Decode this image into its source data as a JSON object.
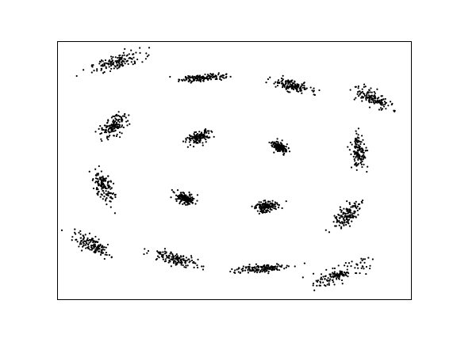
{
  "chart_data": {
    "type": "scatter",
    "title": "",
    "xlabel": "",
    "ylabel": "",
    "xlim": [
      0,
      1
    ],
    "ylim": [
      0,
      1
    ],
    "grid": false,
    "axes_ticks": false,
    "marker_color": "#000000",
    "series": [
      {
        "clusters": [
          {
            "cx": 0.17,
            "cy": 0.92,
            "spread": 0.013,
            "dir_deg": 24,
            "length": 0.14
          },
          {
            "cx": 0.41,
            "cy": 0.86,
            "spread": 0.007,
            "dir_deg": 5,
            "length": 0.12
          },
          {
            "cx": 0.66,
            "cy": 0.83,
            "spread": 0.01,
            "dir_deg": -20,
            "length": 0.1
          },
          {
            "cx": 0.89,
            "cy": 0.78,
            "spread": 0.012,
            "dir_deg": -40,
            "length": 0.11
          },
          {
            "cx": 0.16,
            "cy": 0.67,
            "spread": 0.013,
            "dir_deg": 62,
            "length": 0.1
          },
          {
            "cx": 0.4,
            "cy": 0.63,
            "spread": 0.01,
            "dir_deg": 30,
            "length": 0.07
          },
          {
            "cx": 0.63,
            "cy": 0.59,
            "spread": 0.008,
            "dir_deg": -45,
            "length": 0.05
          },
          {
            "cx": 0.85,
            "cy": 0.57,
            "spread": 0.01,
            "dir_deg": -85,
            "length": 0.11
          },
          {
            "cx": 0.13,
            "cy": 0.44,
            "spread": 0.012,
            "dir_deg": -75,
            "length": 0.11
          },
          {
            "cx": 0.36,
            "cy": 0.39,
            "spread": 0.01,
            "dir_deg": -35,
            "length": 0.06
          },
          {
            "cx": 0.59,
            "cy": 0.36,
            "spread": 0.01,
            "dir_deg": 20,
            "length": 0.06
          },
          {
            "cx": 0.82,
            "cy": 0.33,
            "spread": 0.013,
            "dir_deg": 55,
            "length": 0.1
          },
          {
            "cx": 0.1,
            "cy": 0.21,
            "spread": 0.012,
            "dir_deg": -40,
            "length": 0.12
          },
          {
            "cx": 0.33,
            "cy": 0.16,
            "spread": 0.011,
            "dir_deg": -20,
            "length": 0.12
          },
          {
            "cx": 0.57,
            "cy": 0.12,
            "spread": 0.008,
            "dir_deg": 5,
            "length": 0.14
          },
          {
            "cx": 0.8,
            "cy": 0.1,
            "spread": 0.013,
            "dir_deg": 30,
            "length": 0.15
          }
        ]
      }
    ]
  }
}
